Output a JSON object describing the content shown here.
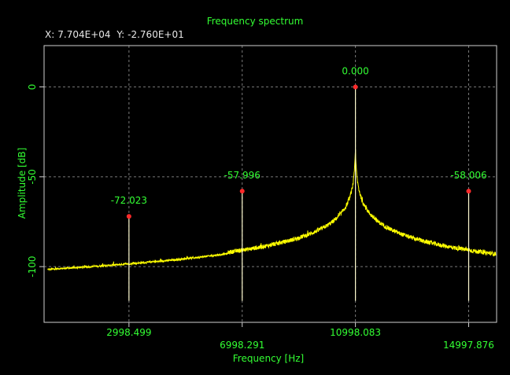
{
  "cursor_readout": {
    "x_label": "X:",
    "x_value": "7.704E+04",
    "y_label": "Y:",
    "y_value": "-2.760E+01"
  },
  "colors": {
    "background": "#000000",
    "axes": "#cfcfcf",
    "grid": "#7a7a7a",
    "text": "#33ff33",
    "trace": "#ffff00",
    "marker": "#ff2a2a",
    "readout": "#e8e8e8"
  },
  "chart_data": {
    "type": "line",
    "title": "Frequency spectrum",
    "xlabel": "Frequency [Hz]",
    "ylabel": "Amplitude [dB]",
    "xlim": [
      0,
      15985
    ],
    "ylim": [
      -131,
      23
    ],
    "grid": true,
    "x_ticks": [
      {
        "value": 2998.499,
        "label": "2998.499",
        "row": 0
      },
      {
        "value": 6998.291,
        "label": "6998.291",
        "row": 1
      },
      {
        "value": 10998.083,
        "label": "10998.083",
        "row": 0
      },
      {
        "value": 14997.876,
        "label": "14997.876",
        "row": 1
      }
    ],
    "y_ticks": [
      {
        "value": 0,
        "label": "0"
      },
      {
        "value": -50,
        "label": "-50"
      },
      {
        "value": -100,
        "label": "-100"
      }
    ],
    "noise_floor_db": -119,
    "peaks": [
      {
        "x": 2998.499,
        "y": -72.023,
        "label": "-72.023"
      },
      {
        "x": 6998.291,
        "y": -57.996,
        "label": "-57.996"
      },
      {
        "x": 10998.083,
        "y": 0.0,
        "label": "0.000"
      },
      {
        "x": 14997.876,
        "y": -58.006,
        "label": "-58.006"
      }
    ]
  }
}
